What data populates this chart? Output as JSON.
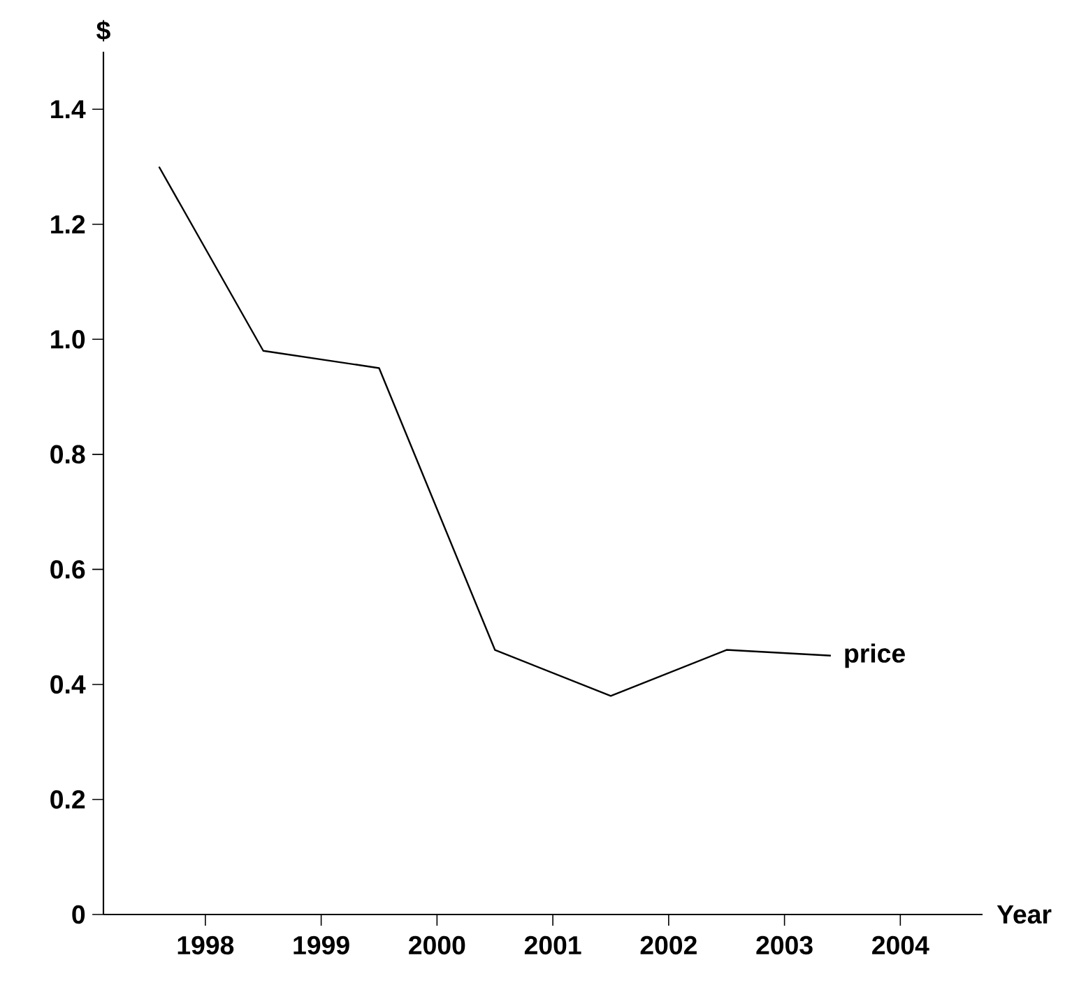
{
  "chart_data": {
    "type": "line",
    "xlabel": "Year",
    "ylabel": "$",
    "xlim": [
      1997.12,
      2004.71
    ],
    "xticks": [
      1998,
      1999,
      2000,
      2001,
      2002,
      2003,
      2004
    ],
    "ylim": [
      0,
      1.5
    ],
    "yticks": [
      0,
      0.2,
      0.4,
      0.6,
      0.8,
      {
        "value": 1,
        "label": "1.0"
      },
      1.2,
      1.4
    ],
    "series": [
      {
        "name": "price",
        "color": "#000000",
        "x": [
          1997.6,
          1998.5,
          1999.5,
          2000.5,
          2001.5,
          2002.5,
          2003.4
        ],
        "values": [
          1.3,
          0.98,
          0.95,
          0.46,
          0.38,
          0.46,
          0.45
        ]
      }
    ]
  }
}
